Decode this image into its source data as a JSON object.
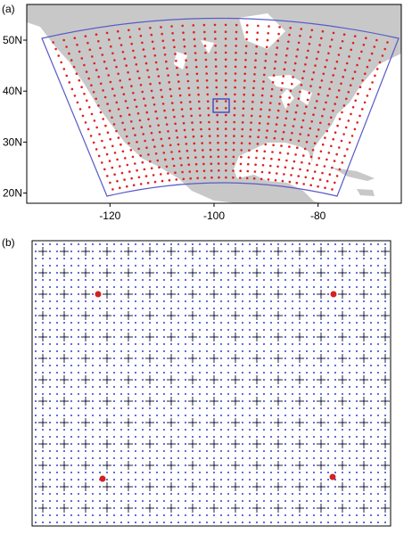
{
  "panel_a": {
    "label": "(a)",
    "xlim": [
      -136,
      -64
    ],
    "ylim": [
      18,
      57
    ],
    "xticks": [
      -120,
      -100,
      -80
    ],
    "yticks": [
      {
        "value": 20,
        "label": "20N"
      },
      {
        "value": 30,
        "label": "30N"
      },
      {
        "value": 40,
        "label": "40N"
      },
      {
        "value": 50,
        "label": "50N"
      }
    ]
  },
  "panel_b": {
    "label": "(b)"
  }
}
